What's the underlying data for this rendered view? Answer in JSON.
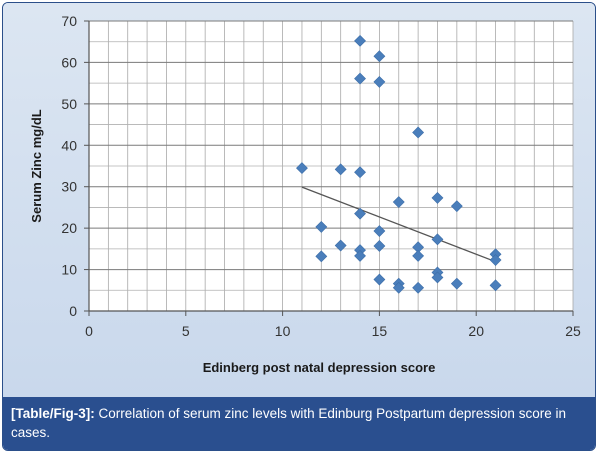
{
  "chart_data": {
    "type": "scatter",
    "xlabel": "Edinberg post natal depression score",
    "ylabel": "Serum Zinc mg/dL",
    "xlim": [
      0,
      25
    ],
    "ylim": [
      0,
      70
    ],
    "x_ticks": [
      "0",
      "5",
      "10",
      "15",
      "20",
      "25"
    ],
    "y_ticks": [
      "0",
      "10",
      "20",
      "30",
      "40",
      "50",
      "60",
      "70"
    ],
    "grid": true,
    "legend": "none",
    "marker_color": "#4a7ebb",
    "trendline_color": "#555555",
    "points": [
      {
        "x": 11,
        "y": 34.5
      },
      {
        "x": 12,
        "y": 20.3
      },
      {
        "x": 12,
        "y": 13.2
      },
      {
        "x": 13,
        "y": 34.2
      },
      {
        "x": 13,
        "y": 15.8
      },
      {
        "x": 14,
        "y": 65.2
      },
      {
        "x": 14,
        "y": 56.1
      },
      {
        "x": 14,
        "y": 33.5
      },
      {
        "x": 14,
        "y": 23.5
      },
      {
        "x": 14,
        "y": 14.7
      },
      {
        "x": 14,
        "y": 13.3
      },
      {
        "x": 15,
        "y": 61.5
      },
      {
        "x": 15,
        "y": 55.3
      },
      {
        "x": 15,
        "y": 19.3
      },
      {
        "x": 15,
        "y": 15.7
      },
      {
        "x": 15,
        "y": 7.6
      },
      {
        "x": 16,
        "y": 26.3
      },
      {
        "x": 16,
        "y": 6.6
      },
      {
        "x": 16,
        "y": 5.6
      },
      {
        "x": 17,
        "y": 43.1
      },
      {
        "x": 17,
        "y": 15.4
      },
      {
        "x": 17,
        "y": 13.3
      },
      {
        "x": 17,
        "y": 5.6
      },
      {
        "x": 18,
        "y": 27.3
      },
      {
        "x": 18,
        "y": 17.3
      },
      {
        "x": 18,
        "y": 9.3
      },
      {
        "x": 18,
        "y": 8.1
      },
      {
        "x": 19,
        "y": 25.3
      },
      {
        "x": 19,
        "y": 6.6
      },
      {
        "x": 21,
        "y": 13.7
      },
      {
        "x": 21,
        "y": 12.3
      },
      {
        "x": 21,
        "y": 6.2
      }
    ],
    "trendline": {
      "x": [
        11,
        21
      ],
      "y": [
        29.9,
        11.9
      ]
    }
  },
  "caption": {
    "label": "[Table/Fig-3]:",
    "text": " Correlation of serum zinc levels with Edinburg Postpartum depression score in cases."
  }
}
